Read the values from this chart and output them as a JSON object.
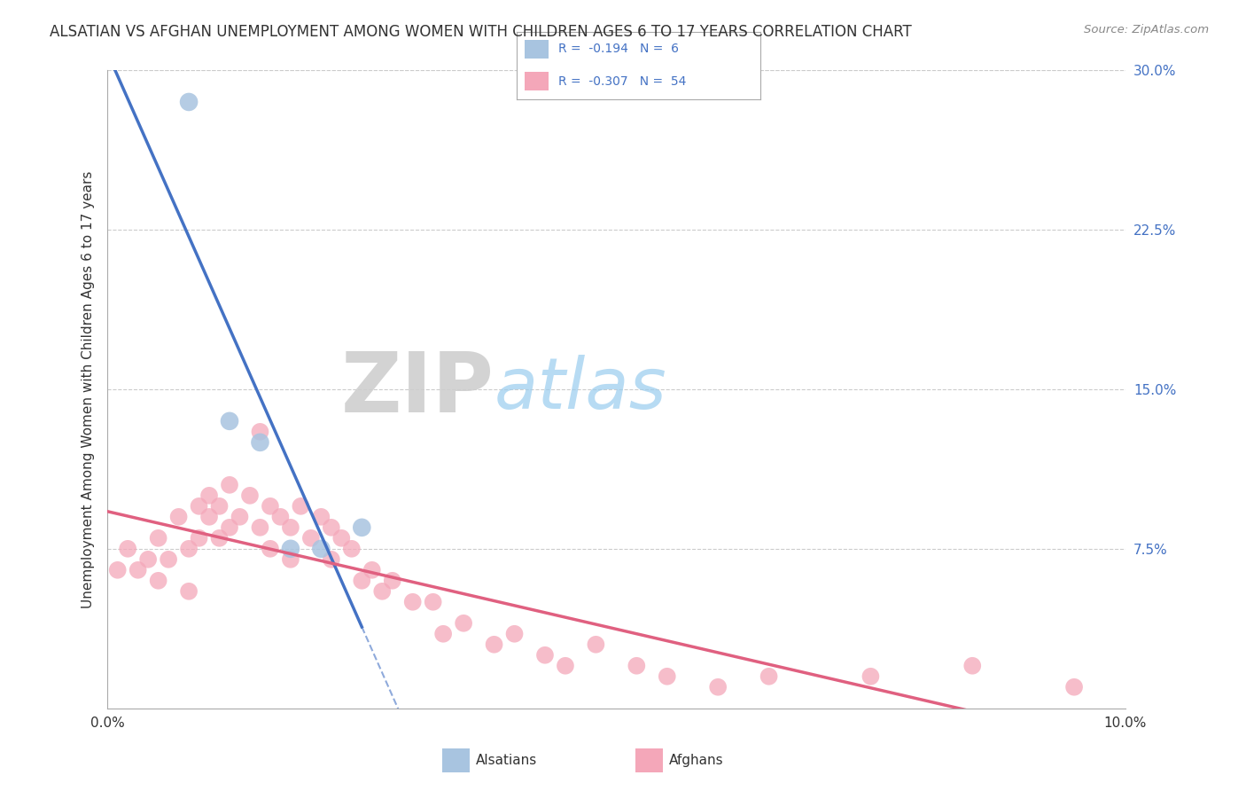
{
  "title": "ALSATIAN VS AFGHAN UNEMPLOYMENT AMONG WOMEN WITH CHILDREN AGES 6 TO 17 YEARS CORRELATION CHART",
  "source": "Source: ZipAtlas.com",
  "ylabel": "Unemployment Among Women with Children Ages 6 to 17 years",
  "x_min": 0.0,
  "x_max": 0.1,
  "y_min": 0.0,
  "y_max": 0.3,
  "x_tick_labels": [
    "0.0%",
    "10.0%"
  ],
  "y_ticks_right": [
    0.075,
    0.15,
    0.225,
    0.3
  ],
  "y_tick_labels_right": [
    "7.5%",
    "15.0%",
    "22.5%",
    "30.0%"
  ],
  "alsatian_color": "#a8c4e0",
  "afghan_color": "#f4a7b9",
  "alsatian_line_color": "#4472c4",
  "afghan_line_color": "#e06080",
  "alsatian_R": -0.194,
  "alsatian_N": 6,
  "afghan_R": -0.307,
  "afghan_N": 54,
  "legend_label_1": "Alsatians",
  "legend_label_2": "Afghans",
  "background_color": "#ffffff",
  "grid_color": "#cccccc",
  "alsatian_x": [
    0.008,
    0.012,
    0.015,
    0.018,
    0.021,
    0.025
  ],
  "alsatian_y": [
    0.285,
    0.135,
    0.125,
    0.075,
    0.075,
    0.085
  ],
  "afghan_x": [
    0.001,
    0.002,
    0.003,
    0.004,
    0.005,
    0.005,
    0.006,
    0.007,
    0.008,
    0.008,
    0.009,
    0.009,
    0.01,
    0.01,
    0.011,
    0.011,
    0.012,
    0.012,
    0.013,
    0.014,
    0.015,
    0.015,
    0.016,
    0.016,
    0.017,
    0.018,
    0.018,
    0.019,
    0.02,
    0.021,
    0.022,
    0.022,
    0.023,
    0.024,
    0.025,
    0.026,
    0.027,
    0.028,
    0.03,
    0.032,
    0.033,
    0.035,
    0.038,
    0.04,
    0.043,
    0.045,
    0.048,
    0.052,
    0.055,
    0.06,
    0.065,
    0.075,
    0.085,
    0.095
  ],
  "afghan_y": [
    0.065,
    0.075,
    0.065,
    0.07,
    0.08,
    0.06,
    0.07,
    0.09,
    0.055,
    0.075,
    0.095,
    0.08,
    0.09,
    0.1,
    0.095,
    0.08,
    0.085,
    0.105,
    0.09,
    0.1,
    0.13,
    0.085,
    0.095,
    0.075,
    0.09,
    0.085,
    0.07,
    0.095,
    0.08,
    0.09,
    0.085,
    0.07,
    0.08,
    0.075,
    0.06,
    0.065,
    0.055,
    0.06,
    0.05,
    0.05,
    0.035,
    0.04,
    0.03,
    0.035,
    0.025,
    0.02,
    0.03,
    0.02,
    0.015,
    0.01,
    0.015,
    0.015,
    0.02,
    0.01
  ]
}
